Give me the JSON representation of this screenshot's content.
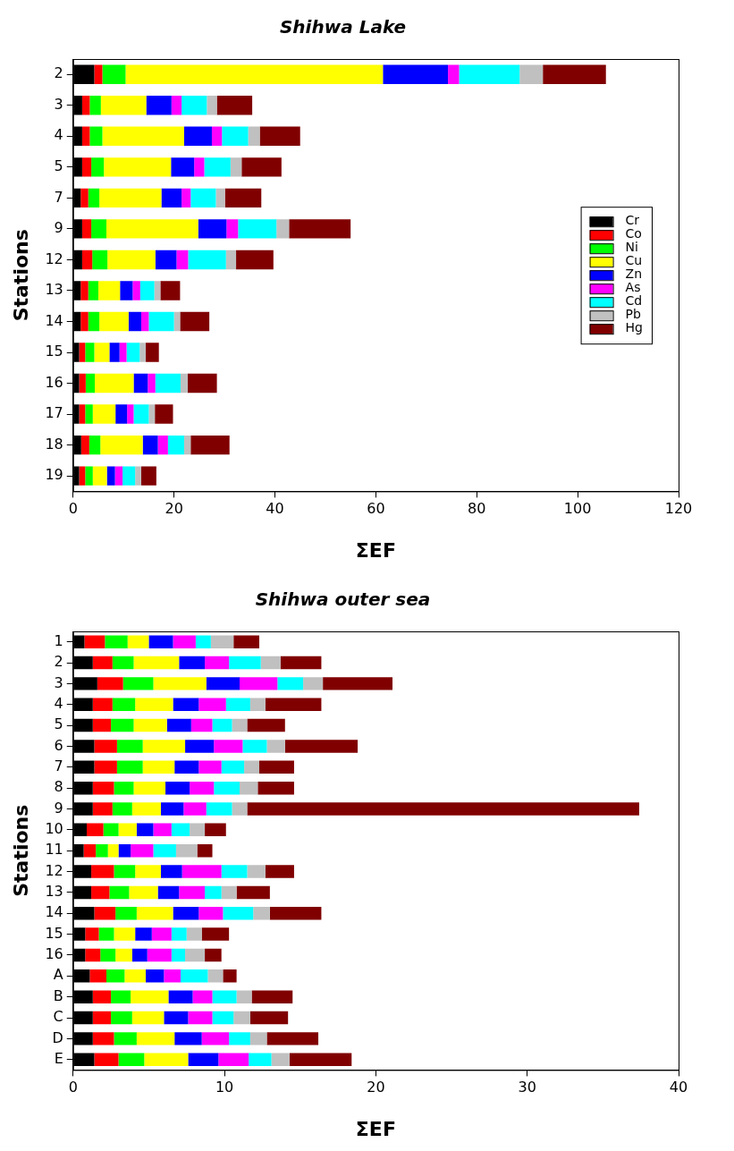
{
  "chart_data": [
    {
      "type": "bar",
      "title": "Shihwa Lake",
      "orientation": "horizontal",
      "stacked": true,
      "grid": false,
      "legend": "right",
      "x_label": "ΣEF",
      "y_label": "Stations",
      "xlim": [
        0,
        120
      ],
      "xticks": [
        0,
        20,
        40,
        60,
        80,
        100,
        120
      ],
      "categories": [
        "2",
        "3",
        "4",
        "5",
        "7",
        "9",
        "12",
        "13",
        "14",
        "15",
        "16",
        "17",
        "18",
        "19"
      ],
      "series": [
        {
          "name": "Cr",
          "color": "#000000",
          "values": [
            4.2,
            1.8,
            1.8,
            1.8,
            1.5,
            1.8,
            1.8,
            1.5,
            1.5,
            1.2,
            1.2,
            1.2,
            1.6,
            1.2
          ]
        },
        {
          "name": "Co",
          "color": "#ff0000",
          "values": [
            1.6,
            1.5,
            1.5,
            1.8,
            1.5,
            1.8,
            2.0,
            1.5,
            1.5,
            1.2,
            1.3,
            1.2,
            1.6,
            1.2
          ]
        },
        {
          "name": "Ni",
          "color": "#00ff00",
          "values": [
            4.6,
            2.2,
            2.5,
            2.5,
            2.2,
            3.0,
            3.0,
            2.0,
            2.2,
            1.8,
            1.8,
            1.5,
            2.2,
            1.5
          ]
        },
        {
          "name": "Cu",
          "color": "#ffff00",
          "values": [
            51.0,
            9.0,
            16.2,
            13.3,
            12.3,
            18.2,
            9.5,
            4.3,
            5.8,
            3.0,
            7.7,
            4.5,
            8.4,
            2.8
          ]
        },
        {
          "name": "Zn",
          "color": "#0000ff",
          "values": [
            12.9,
            5.0,
            5.5,
            4.6,
            4.0,
            5.6,
            4.2,
            2.5,
            2.5,
            2.0,
            2.8,
            2.3,
            3.0,
            1.6
          ]
        },
        {
          "name": "As",
          "color": "#ff00ff",
          "values": [
            2.2,
            2.0,
            2.0,
            2.0,
            1.8,
            2.3,
            2.3,
            1.5,
            1.5,
            1.4,
            1.5,
            1.3,
            2.0,
            1.5
          ]
        },
        {
          "name": "Cd",
          "color": "#00ffff",
          "values": [
            12.0,
            5.0,
            5.2,
            5.2,
            5.0,
            7.6,
            7.5,
            2.8,
            5.0,
            2.6,
            5.0,
            3.0,
            3.2,
            2.5
          ]
        },
        {
          "name": "Pb",
          "color": "#c0c0c0",
          "values": [
            4.6,
            2.0,
            2.3,
            2.2,
            1.8,
            2.5,
            2.0,
            1.2,
            1.2,
            1.2,
            1.4,
            1.2,
            1.3,
            1.2
          ]
        },
        {
          "name": "Hg",
          "color": "#800000",
          "values": [
            12.5,
            7.0,
            8.0,
            7.9,
            7.2,
            12.2,
            7.4,
            3.9,
            5.8,
            2.6,
            5.8,
            3.6,
            7.7,
            3.0
          ]
        }
      ]
    },
    {
      "type": "bar",
      "title": "Shihwa outer sea",
      "orientation": "horizontal",
      "stacked": true,
      "grid": false,
      "legend": false,
      "x_label": "ΣEF",
      "y_label": "Stations",
      "xlim": [
        0,
        40
      ],
      "xticks": [
        0,
        10,
        20,
        30,
        40
      ],
      "categories": [
        "1",
        "2",
        "3",
        "4",
        "5",
        "6",
        "7",
        "8",
        "9",
        "10",
        "11",
        "12",
        "13",
        "14",
        "15",
        "16",
        "A",
        "B",
        "C",
        "D",
        "E"
      ],
      "series": [
        {
          "name": "Cr",
          "color": "#000000",
          "values": [
            0.75,
            1.3,
            1.6,
            1.3,
            1.3,
            1.4,
            1.4,
            1.3,
            1.3,
            0.9,
            0.7,
            1.2,
            1.2,
            1.4,
            0.8,
            0.8,
            1.1,
            1.3,
            1.3,
            1.3,
            1.4
          ]
        },
        {
          "name": "Co",
          "color": "#ff0000",
          "values": [
            1.35,
            1.3,
            1.7,
            1.3,
            1.2,
            1.5,
            1.5,
            1.4,
            1.3,
            1.1,
            0.8,
            1.5,
            1.2,
            1.4,
            0.9,
            1.0,
            1.1,
            1.2,
            1.2,
            1.4,
            1.6
          ]
        },
        {
          "name": "Ni",
          "color": "#00ff00",
          "values": [
            1.5,
            1.4,
            2.0,
            1.5,
            1.5,
            1.7,
            1.7,
            1.3,
            1.3,
            1.0,
            0.8,
            1.4,
            1.3,
            1.4,
            1.0,
            1.0,
            1.2,
            1.3,
            1.4,
            1.5,
            1.7
          ]
        },
        {
          "name": "Cu",
          "color": "#ffff00",
          "values": [
            1.4,
            3.0,
            3.5,
            2.5,
            2.2,
            2.8,
            2.1,
            2.1,
            1.9,
            1.2,
            0.7,
            1.7,
            1.9,
            2.4,
            1.4,
            1.1,
            1.4,
            2.5,
            2.1,
            2.5,
            2.9
          ]
        },
        {
          "name": "Zn",
          "color": "#0000ff",
          "values": [
            1.6,
            1.7,
            2.2,
            1.7,
            1.6,
            1.9,
            1.6,
            1.6,
            1.5,
            1.1,
            0.8,
            1.4,
            1.4,
            1.7,
            1.1,
            1.0,
            1.2,
            1.6,
            1.6,
            1.8,
            2.0
          ]
        },
        {
          "name": "As",
          "color": "#ff00ff",
          "values": [
            1.5,
            1.6,
            2.5,
            1.8,
            1.4,
            1.9,
            1.5,
            1.6,
            1.5,
            1.2,
            1.5,
            2.6,
            1.7,
            1.6,
            1.3,
            1.6,
            1.1,
            1.3,
            1.6,
            1.8,
            2.0
          ]
        },
        {
          "name": "Cd",
          "color": "#00ffff",
          "values": [
            1.0,
            2.1,
            1.7,
            1.6,
            1.3,
            1.6,
            1.5,
            1.7,
            1.7,
            1.2,
            1.5,
            1.7,
            1.1,
            2.0,
            1.0,
            0.9,
            1.8,
            1.6,
            1.4,
            1.4,
            1.5
          ]
        },
        {
          "name": "Pb",
          "color": "#c0c0c0",
          "values": [
            1.5,
            1.3,
            1.3,
            1.0,
            1.0,
            1.2,
            1.0,
            1.2,
            1.0,
            1.0,
            1.4,
            1.2,
            1.0,
            1.1,
            1.0,
            1.3,
            1.0,
            1.0,
            1.1,
            1.1,
            1.2
          ]
        },
        {
          "name": "Hg",
          "color": "#800000",
          "values": [
            1.7,
            2.7,
            4.6,
            3.7,
            2.5,
            4.8,
            2.3,
            2.4,
            25.9,
            1.4,
            1.0,
            1.9,
            2.2,
            3.4,
            1.8,
            1.1,
            0.9,
            2.7,
            2.5,
            3.4,
            4.1
          ]
        }
      ]
    }
  ]
}
